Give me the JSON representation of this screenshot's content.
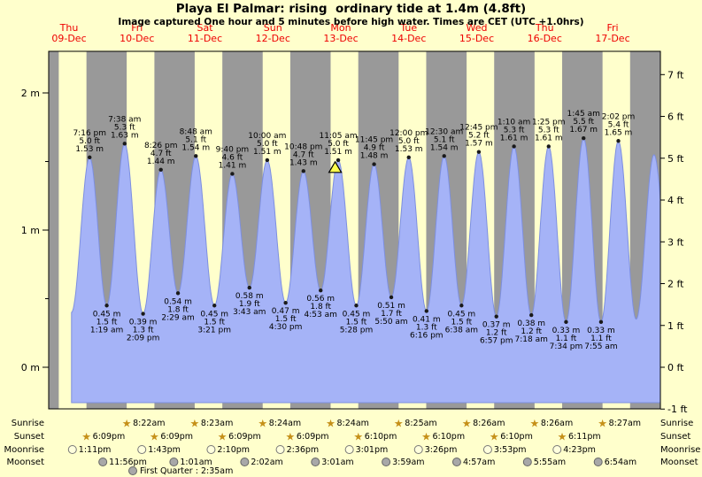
{
  "title": "Playa El Palmar: rising  ordinary tide at 1.4m (4.8ft)",
  "subtitle": "Image captured One hour and 5 minutes before high water. Times are CET (UTC +1.0hrs)",
  "colors": {
    "page_bg": "#ffffcc",
    "night_band": "#999999",
    "tide_fill": "#a5b3f7",
    "tide_stroke": "#7d8fe0",
    "day_label": "#ee0000",
    "text": "#000000",
    "marker_fill": "#ffff4d",
    "sun_icon": "#c59018",
    "moonrise_fill": "#ffffdd",
    "moonset_fill": "#a8a8a8"
  },
  "chart_data": {
    "type": "area",
    "title": "Playa El Palmar: rising  ordinary tide at 1.4m (4.8ft)",
    "ylabel_left": "m",
    "ylabel_right": "ft",
    "left_axis_ticks": [
      "0 m",
      "1 m",
      "2 m"
    ],
    "right_axis_ticks": [
      "-1 ft",
      "0 ft",
      "1 ft",
      "2 ft",
      "3 ft",
      "4 ft",
      "5 ft",
      "6 ft",
      "7 ft"
    ],
    "days": [
      {
        "weekday": "Thu",
        "date": "09-Dec"
      },
      {
        "weekday": "Fri",
        "date": "10-Dec"
      },
      {
        "weekday": "Sat",
        "date": "11-Dec"
      },
      {
        "weekday": "Sun",
        "date": "12-Dec"
      },
      {
        "weekday": "Mon",
        "date": "13-Dec"
      },
      {
        "weekday": "Tue",
        "date": "14-Dec"
      },
      {
        "weekday": "Wed",
        "date": "15-Dec"
      },
      {
        "weekday": "Thu",
        "date": "16-Dec"
      },
      {
        "weekday": "Fri",
        "date": "17-Dec"
      }
    ],
    "tide_events": [
      {
        "kind": "high",
        "day": 0,
        "time": "7:16 pm",
        "ft": "5.0 ft",
        "m": "1.53 m"
      },
      {
        "kind": "low",
        "day": 1,
        "time": "1:19 am",
        "ft": "1.5 ft",
        "m": "0.45 m"
      },
      {
        "kind": "high",
        "day": 1,
        "time": "7:38 am",
        "ft": "5.3 ft",
        "m": "1.63 m"
      },
      {
        "kind": "low",
        "day": 1,
        "time": "2:09 pm",
        "ft": "1.3 ft",
        "m": "0.39 m"
      },
      {
        "kind": "high",
        "day": 1,
        "time": "8:26 pm",
        "ft": "4.7 ft",
        "m": "1.44 m"
      },
      {
        "kind": "low",
        "day": 2,
        "time": "2:29 am",
        "ft": "1.8 ft",
        "m": "0.54 m"
      },
      {
        "kind": "high",
        "day": 2,
        "time": "8:48 am",
        "ft": "5.1 ft",
        "m": "1.54 m"
      },
      {
        "kind": "low",
        "day": 2,
        "time": "3:21 pm",
        "ft": "1.5 ft",
        "m": "0.45 m"
      },
      {
        "kind": "high",
        "day": 2,
        "time": "9:40 pm",
        "ft": "4.6 ft",
        "m": "1.41 m"
      },
      {
        "kind": "low",
        "day": 3,
        "time": "3:43 am",
        "ft": "1.9 ft",
        "m": "0.58 m"
      },
      {
        "kind": "high",
        "day": 3,
        "time": "10:00 am",
        "ft": "5.0 ft",
        "m": "1.51 m"
      },
      {
        "kind": "low",
        "day": 3,
        "time": "4:30 pm",
        "ft": "1.5 ft",
        "m": "0.47 m"
      },
      {
        "kind": "high",
        "day": 3,
        "time": "10:48 pm",
        "ft": "4.7 ft",
        "m": "1.43 m"
      },
      {
        "kind": "low",
        "day": 4,
        "time": "4:53 am",
        "ft": "1.8 ft",
        "m": "0.56 m"
      },
      {
        "kind": "high",
        "day": 4,
        "time": "11:05 am",
        "ft": "5.0 ft",
        "m": "1.51 m"
      },
      {
        "kind": "low",
        "day": 4,
        "time": "5:28 pm",
        "ft": "1.5 ft",
        "m": "0.45 m"
      },
      {
        "kind": "high",
        "day": 4,
        "time": "11:45 pm",
        "ft": "4.9 ft",
        "m": "1.48 m"
      },
      {
        "kind": "low",
        "day": 5,
        "time": "5:50 am",
        "ft": "1.7 ft",
        "m": "0.51 m"
      },
      {
        "kind": "high",
        "day": 5,
        "time": "12:00 pm",
        "ft": "5.0 ft",
        "m": "1.53 m"
      },
      {
        "kind": "low",
        "day": 5,
        "time": "6:16 pm",
        "ft": "1.3 ft",
        "m": "0.41 m"
      },
      {
        "kind": "high",
        "day": 6,
        "time": "12:30 am",
        "ft": "5.1 ft",
        "m": "1.54 m"
      },
      {
        "kind": "low",
        "day": 6,
        "time": "6:38 am",
        "ft": "1.5 ft",
        "m": "0.45 m"
      },
      {
        "kind": "high",
        "day": 6,
        "time": "12:45 pm",
        "ft": "5.2 ft",
        "m": "1.57 m"
      },
      {
        "kind": "low",
        "day": 6,
        "time": "6:57 pm",
        "ft": "1.2 ft",
        "m": "0.37 m"
      },
      {
        "kind": "high",
        "day": 7,
        "time": "1:10 am",
        "ft": "5.3 ft",
        "m": "1.61 m"
      },
      {
        "kind": "low",
        "day": 7,
        "time": "7:18 am",
        "ft": "1.2 ft",
        "m": "0.38 m"
      },
      {
        "kind": "high",
        "day": 7,
        "time": "1:25 pm",
        "ft": "5.3 ft",
        "m": "1.61 m"
      },
      {
        "kind": "low",
        "day": 7,
        "time": "7:34 pm",
        "ft": "1.1 ft",
        "m": "0.33 m"
      },
      {
        "kind": "high",
        "day": 8,
        "time": "1:45 am",
        "ft": "5.5 ft",
        "m": "1.67 m"
      },
      {
        "kind": "low",
        "day": 8,
        "time": "7:55 am",
        "ft": "1.1 ft",
        "m": "0.33 m"
      },
      {
        "kind": "high",
        "day": 8,
        "time": "2:02 pm",
        "ft": "5.4 ft",
        "m": "1.65 m"
      }
    ],
    "current_marker": {
      "day": 4,
      "time": "10:00 am"
    }
  },
  "almanac": {
    "rows": [
      {
        "label": "Sunrise",
        "icon": "sun-star",
        "entries": [
          {
            "day": 1,
            "time": "8:22am"
          },
          {
            "day": 2,
            "time": "8:23am"
          },
          {
            "day": 3,
            "time": "8:24am"
          },
          {
            "day": 4,
            "time": "8:24am"
          },
          {
            "day": 5,
            "time": "8:25am"
          },
          {
            "day": 6,
            "time": "8:26am"
          },
          {
            "day": 7,
            "time": "8:26am"
          },
          {
            "day": 8,
            "time": "8:27am"
          }
        ]
      },
      {
        "label": "Sunset",
        "icon": "sun-star",
        "entries": [
          {
            "day": 0,
            "time": "6:09pm"
          },
          {
            "day": 1,
            "time": "6:09pm"
          },
          {
            "day": 2,
            "time": "6:09pm"
          },
          {
            "day": 3,
            "time": "6:09pm"
          },
          {
            "day": 4,
            "time": "6:10pm"
          },
          {
            "day": 5,
            "time": "6:10pm"
          },
          {
            "day": 6,
            "time": "6:10pm"
          },
          {
            "day": 7,
            "time": "6:11pm"
          }
        ]
      },
      {
        "label": "Moonrise",
        "icon": "moon-light",
        "entries": [
          {
            "day": 0,
            "time": "1:11pm"
          },
          {
            "day": 1,
            "time": "1:43pm"
          },
          {
            "day": 2,
            "time": "2:10pm"
          },
          {
            "day": 3,
            "time": "2:36pm"
          },
          {
            "day": 4,
            "time": "3:01pm"
          },
          {
            "day": 5,
            "time": "3:26pm"
          },
          {
            "day": 6,
            "time": "3:53pm"
          },
          {
            "day": 7,
            "time": "4:23pm"
          }
        ]
      },
      {
        "label": "Moonset",
        "icon": "moon-dark",
        "entries": [
          {
            "day": 0,
            "time": "11:56pm"
          },
          {
            "day": 2,
            "time": "1:01am"
          },
          {
            "day": 3,
            "time": "2:02am"
          },
          {
            "day": 4,
            "time": "3:01am"
          },
          {
            "day": 5,
            "time": "3:59am"
          },
          {
            "day": 6,
            "time": "4:57am"
          },
          {
            "day": 7,
            "time": "5:55am"
          },
          {
            "day": 8,
            "time": "6:54am"
          }
        ]
      }
    ],
    "footnote": {
      "icon": "moon-dark",
      "text": "First Quarter : 2:35am"
    }
  }
}
